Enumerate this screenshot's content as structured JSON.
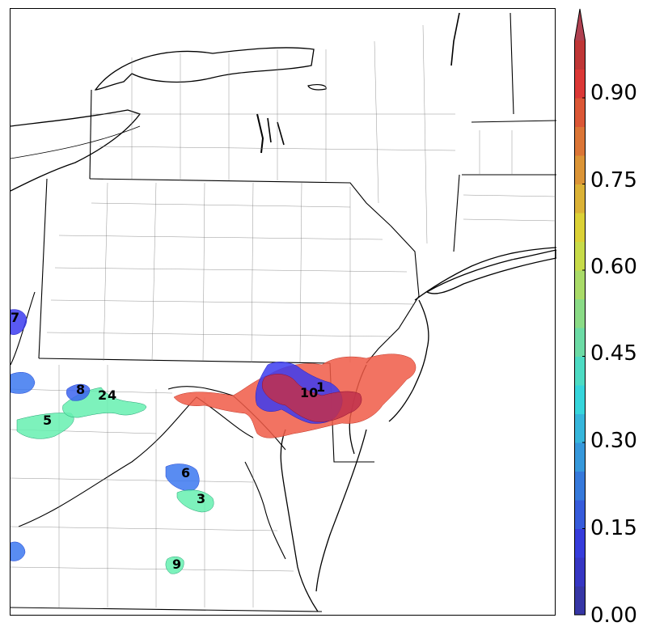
{
  "map": {
    "regions": [
      {
        "label": "1",
        "value": 0.97,
        "color": "#c0304c"
      },
      {
        "label": "10",
        "value": 0.1,
        "color": "#3c3cf0"
      },
      {
        "label": "2",
        "value": 0.45,
        "color": "#66f0b0"
      },
      {
        "label": "4",
        "value": 0.45,
        "color": "#66f0b0"
      },
      {
        "label": "8",
        "value": 0.15,
        "color": "#3c64f0"
      },
      {
        "label": "5",
        "value": 0.45,
        "color": "#66f0b0"
      },
      {
        "label": "6",
        "value": 0.2,
        "color": "#3c78f0"
      },
      {
        "label": "3",
        "value": 0.45,
        "color": "#66f0b0"
      },
      {
        "label": "9",
        "value": 0.45,
        "color": "#66f0b0"
      },
      {
        "label": "7",
        "value": 0.1,
        "color": "#3c3cf0"
      },
      {
        "label": "",
        "value": 0.85,
        "color": "#f05a46"
      }
    ]
  },
  "colorbar": {
    "ticks": [
      "0.00",
      "0.15",
      "0.30",
      "0.45",
      "0.60",
      "0.75",
      "0.90"
    ],
    "range": [
      0.0,
      1.0
    ],
    "extend": "max"
  }
}
